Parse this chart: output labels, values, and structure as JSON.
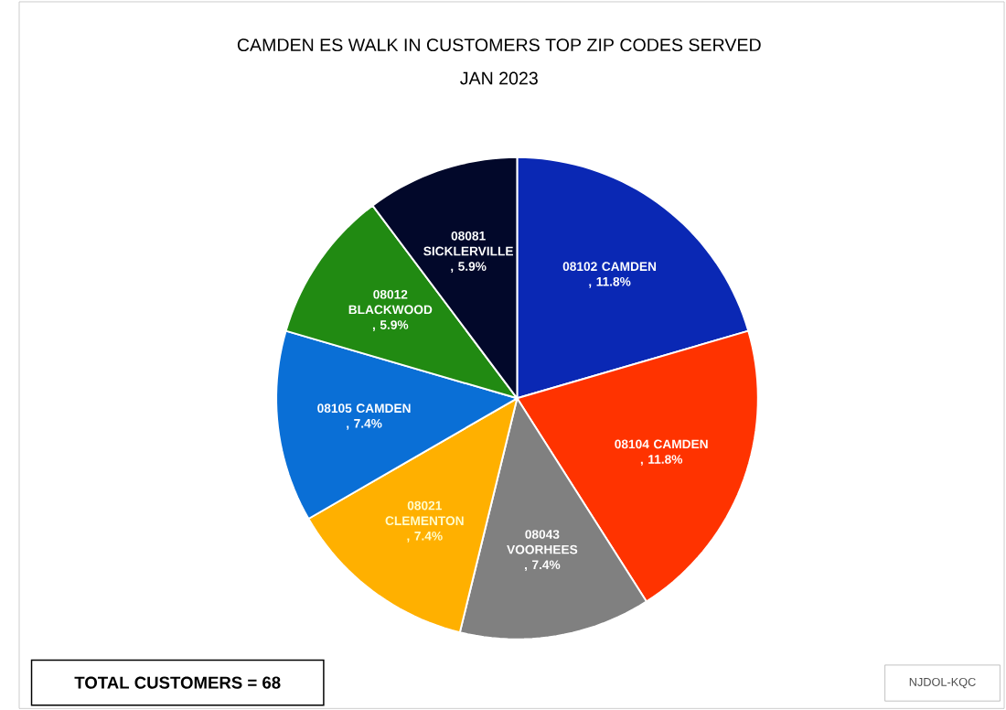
{
  "chart_data": {
    "type": "pie",
    "title": "CAMDEN ES WALK IN CUSTOMERS TOP ZIP CODES SERVED",
    "subtitle": "JAN 2023",
    "categories": [
      "08102 CAMDEN",
      "08104 CAMDEN",
      "08043 VOORHEES",
      "08021 CLEMENTON",
      "08105 CAMDEN",
      "08012 BLACKWOOD",
      "08081 SICKLERVILLE"
    ],
    "values": [
      11.8,
      11.8,
      7.4,
      7.4,
      7.4,
      5.9,
      5.9
    ],
    "value_labels": [
      ", 11.8%",
      ", 11.8%",
      ", 7.4%",
      ", 7.4%",
      ", 7.4%",
      ", 5.9%",
      ", 5.9%"
    ],
    "colors": [
      "#0a28b4",
      "#ff3300",
      "#808080",
      "#ffb000",
      "#0a6fd6",
      "#218a12",
      "#02082a"
    ],
    "annotations": [
      "TOTAL CUSTOMERS = 68",
      "NJDOL-KQC"
    ]
  }
}
